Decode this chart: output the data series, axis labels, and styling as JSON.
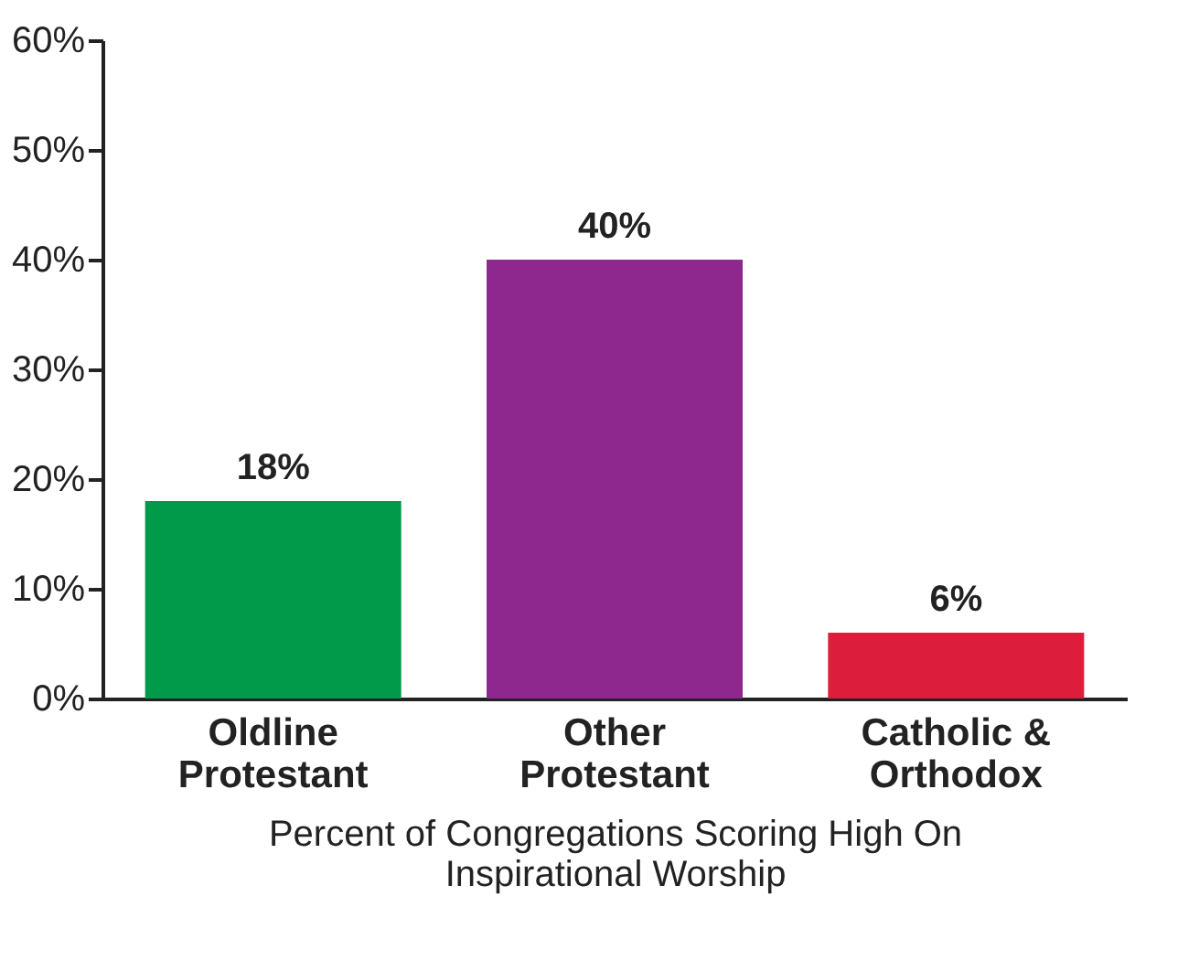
{
  "chart_data": {
    "type": "bar",
    "categories": [
      "Oldline\nProtestant",
      "Other\nProtestant",
      "Catholic &\nOrthodox"
    ],
    "values": [
      18,
      40,
      6
    ],
    "colors": [
      "#009a4a",
      "#8e278e",
      "#dc1e3c"
    ],
    "value_labels": [
      "18%",
      "40%",
      "6%"
    ],
    "xlabel": "Percent of Congregations Scoring High On\nInspirational Worship",
    "ylim": [
      0,
      60
    ],
    "yticks": [
      {
        "value": 0,
        "label": "0%"
      },
      {
        "value": 10,
        "label": "10%"
      },
      {
        "value": 20,
        "label": "20%"
      },
      {
        "value": 30,
        "label": "30%"
      },
      {
        "value": 40,
        "label": "40%"
      },
      {
        "value": 50,
        "label": "50%"
      },
      {
        "value": 60,
        "label": "60%"
      }
    ],
    "grid": false
  }
}
